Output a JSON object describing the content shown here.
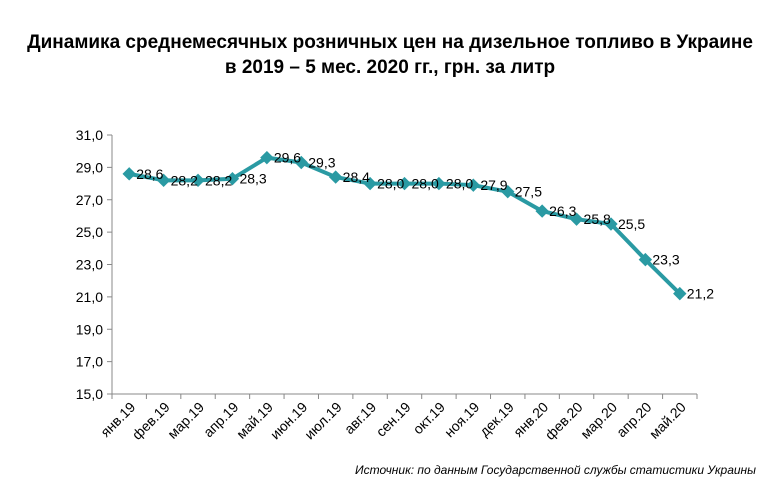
{
  "title_line1": "Динамика среднемесячных розничных цен на дизельное топливо в Украине",
  "title_line2": "в 2019 – 5 мес. 2020 гг., грн. за литр",
  "source": "Источник: по данным Государственной службы статистики Украины",
  "colors": {
    "line": "#2a9aa3",
    "axis": "#888888"
  },
  "chart_data": {
    "type": "line",
    "title": "Динамика среднемесячных розничных цен на дизельное топливо в Украине в 2019 – 5 мес. 2020 гг., грн. за литр",
    "xlabel": "",
    "ylabel": "",
    "categories": [
      "янв.19",
      "фев.19",
      "мар.19",
      "апр.19",
      "май.19",
      "июн.19",
      "июл.19",
      "авг.19",
      "сен.19",
      "окт.19",
      "ноя.19",
      "дек.19",
      "янв.20",
      "фев.20",
      "мар.20",
      "апр.20",
      "май.20"
    ],
    "values": [
      28.6,
      28.2,
      28.2,
      28.3,
      29.6,
      29.3,
      28.4,
      28.0,
      28.0,
      28.0,
      27.9,
      27.5,
      26.3,
      25.8,
      25.5,
      23.3,
      21.2
    ],
    "value_labels": [
      "28,6",
      "28,2",
      "28,2",
      "28,3",
      "29,6",
      "29,3",
      "28,4",
      "28,0",
      "28,0",
      "28,0",
      "27,9",
      "27,5",
      "26,3",
      "25,8",
      "25,5",
      "23,3",
      "21,2"
    ],
    "ylim": [
      15.0,
      31.0
    ],
    "yticks": [
      "15,0",
      "17,0",
      "19,0",
      "21,0",
      "23,0",
      "25,0",
      "27,0",
      "29,0",
      "31,0"
    ],
    "grid": false,
    "legend": "none"
  }
}
